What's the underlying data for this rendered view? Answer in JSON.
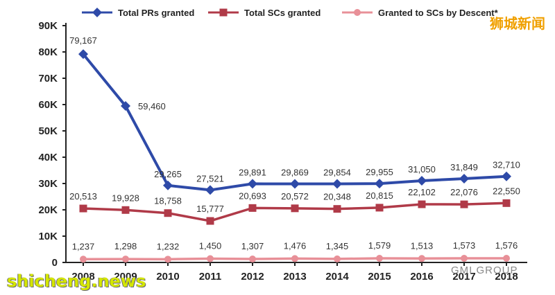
{
  "chart_data": {
    "type": "line",
    "categories": [
      "2008",
      "2009",
      "2010",
      "2011",
      "2012",
      "2013",
      "2014",
      "2015",
      "2016",
      "2017",
      "2018"
    ],
    "y_ticks": [
      "0",
      "10K",
      "20K",
      "30K",
      "40K",
      "50K",
      "60K",
      "70K",
      "80K",
      "90K"
    ],
    "ylim": [
      0,
      90000
    ],
    "grid": false,
    "legend_position": "top",
    "series": [
      {
        "name": "Total PRs granted",
        "color": "#2e4aa8",
        "marker": "diamond",
        "values": [
          79167,
          59460,
          29265,
          27521,
          29891,
          29869,
          29854,
          29955,
          31050,
          31849,
          32710
        ],
        "labels": [
          "79,167",
          "59,460",
          "29,265",
          "27,521",
          "29,891",
          "29,869",
          "29,854",
          "29,955",
          "31,050",
          "31,849",
          "32,710"
        ]
      },
      {
        "name": "Total SCs granted",
        "color": "#b03a48",
        "marker": "square",
        "values": [
          20513,
          19928,
          18758,
          15777,
          20693,
          20572,
          20348,
          20815,
          22102,
          22076,
          22550
        ],
        "labels": [
          "20,513",
          "19,928",
          "18,758",
          "15,777",
          "20,693",
          "20,572",
          "20,348",
          "20,815",
          "22,102",
          "22,076",
          "22,550"
        ]
      },
      {
        "name": "Granted to SCs by Descent*",
        "color": "#e89098",
        "marker": "circle",
        "values": [
          1237,
          1298,
          1232,
          1450,
          1307,
          1476,
          1345,
          1579,
          1513,
          1573,
          1576
        ],
        "labels": [
          "1,237",
          "1,298",
          "1,232",
          "1,450",
          "1,307",
          "1,476",
          "1,345",
          "1,579",
          "1,513",
          "1,573",
          "1,576"
        ]
      }
    ]
  },
  "watermarks": {
    "cn": "狮城新闻",
    "site": "shicheng.news",
    "group": "GMI GROUP"
  }
}
